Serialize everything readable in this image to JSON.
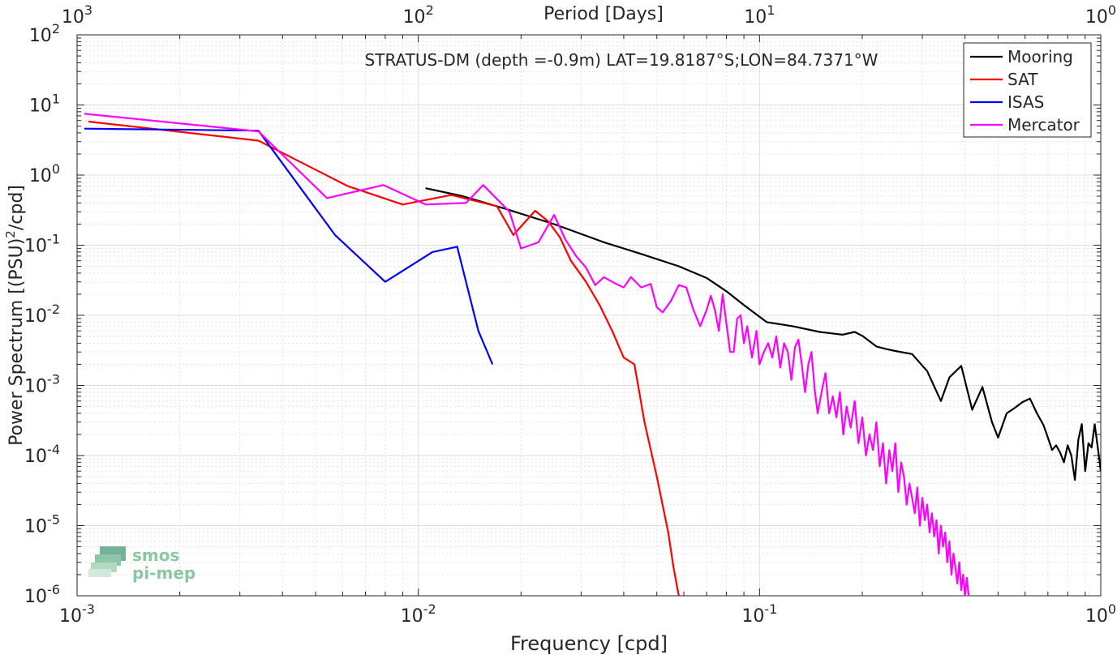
{
  "chart_data": {
    "type": "line",
    "title": "STRATUS-DM (depth =-0.9m) LAT=19.8187°S;LON=84.7371°W",
    "xlabel": "Frequency [cpd]",
    "ylabel_main": "Power Spectrum [(PSU)",
    "ylabel_sup": "2",
    "ylabel_tail": "/cpd]",
    "top_xlabel": "Period [Days]",
    "x_scale": "log",
    "y_scale": "log",
    "xlim": [
      0.001,
      1
    ],
    "ylim": [
      1e-06,
      100
    ],
    "grid": true,
    "legend_position": "top-right",
    "x_ticks": [
      {
        "value": 0.001,
        "base": "10",
        "exp": "-3"
      },
      {
        "value": 0.01,
        "base": "10",
        "exp": "-2"
      },
      {
        "value": 0.1,
        "base": "10",
        "exp": "-1"
      },
      {
        "value": 1,
        "base": "10",
        "exp": "0"
      }
    ],
    "top_ticks": [
      {
        "value": 0.001,
        "base": "10",
        "exp": "3"
      },
      {
        "value": 0.01,
        "base": "10",
        "exp": "2"
      },
      {
        "value": 0.1,
        "base": "10",
        "exp": "1"
      },
      {
        "value": 1,
        "base": "10",
        "exp": "0"
      }
    ],
    "y_ticks": [
      {
        "value": 100,
        "base": "10",
        "exp": "2"
      },
      {
        "value": 10,
        "base": "10",
        "exp": "1"
      },
      {
        "value": 1,
        "base": "10",
        "exp": "0"
      },
      {
        "value": 0.1,
        "base": "10",
        "exp": "-1"
      },
      {
        "value": 0.01,
        "base": "10",
        "exp": "-2"
      },
      {
        "value": 0.001,
        "base": "10",
        "exp": "-3"
      },
      {
        "value": 0.0001,
        "base": "10",
        "exp": "-4"
      },
      {
        "value": 1e-05,
        "base": "10",
        "exp": "-5"
      },
      {
        "value": 1e-06,
        "base": "10",
        "exp": "-6"
      }
    ],
    "series": [
      {
        "name": "Mooring",
        "color": "#000000",
        "points": [
          [
            0.0105,
            0.65
          ],
          [
            0.0135,
            0.5
          ],
          [
            0.018,
            0.33
          ],
          [
            0.025,
            0.2
          ],
          [
            0.035,
            0.11
          ],
          [
            0.045,
            0.075
          ],
          [
            0.058,
            0.05
          ],
          [
            0.07,
            0.034
          ],
          [
            0.08,
            0.022
          ],
          [
            0.09,
            0.014
          ],
          [
            0.105,
            0.008
          ],
          [
            0.125,
            0.007
          ],
          [
            0.15,
            0.0058
          ],
          [
            0.175,
            0.0053
          ],
          [
            0.19,
            0.0058
          ],
          [
            0.2,
            0.0051
          ],
          [
            0.22,
            0.0036
          ],
          [
            0.235,
            0.0033
          ],
          [
            0.25,
            0.0031
          ],
          [
            0.28,
            0.0028
          ],
          [
            0.31,
            0.0016
          ],
          [
            0.34,
            0.0006
          ],
          [
            0.36,
            0.0013
          ],
          [
            0.39,
            0.0019
          ],
          [
            0.42,
            0.00045
          ],
          [
            0.45,
            0.00095
          ],
          [
            0.48,
            0.0003
          ],
          [
            0.5,
            0.00018
          ],
          [
            0.53,
            0.0004
          ],
          [
            0.56,
            0.00048
          ],
          [
            0.59,
            0.00058
          ],
          [
            0.62,
            0.00065
          ],
          [
            0.65,
            0.0004
          ],
          [
            0.68,
            0.00027
          ],
          [
            0.7,
            0.00018
          ],
          [
            0.72,
            0.00012
          ],
          [
            0.74,
            0.00014
          ],
          [
            0.76,
            0.00011
          ],
          [
            0.78,
            8e-05
          ],
          [
            0.8,
            0.00014
          ],
          [
            0.82,
            0.0001
          ],
          [
            0.84,
            4.5e-05
          ],
          [
            0.86,
            0.00017
          ],
          [
            0.88,
            0.00028
          ],
          [
            0.9,
            6e-05
          ],
          [
            0.92,
            0.00015
          ],
          [
            0.94,
            0.00013
          ],
          [
            0.96,
            0.00028
          ],
          [
            0.98,
            0.00013
          ],
          [
            1.0,
            6e-05
          ]
        ]
      },
      {
        "name": "SAT",
        "color": "#ff0000",
        "points": [
          [
            0.00108,
            5.8
          ],
          [
            0.0034,
            3.1
          ],
          [
            0.0062,
            0.7
          ],
          [
            0.009,
            0.38
          ],
          [
            0.0125,
            0.52
          ],
          [
            0.017,
            0.36
          ],
          [
            0.019,
            0.14
          ],
          [
            0.022,
            0.31
          ],
          [
            0.024,
            0.22
          ],
          [
            0.026,
            0.13
          ],
          [
            0.028,
            0.06
          ],
          [
            0.031,
            0.03
          ],
          [
            0.034,
            0.014
          ],
          [
            0.037,
            0.006
          ],
          [
            0.04,
            0.0025
          ],
          [
            0.043,
            0.002
          ],
          [
            0.046,
            0.0003
          ],
          [
            0.05,
            5e-05
          ],
          [
            0.054,
            8e-06
          ],
          [
            0.056,
            2.5e-06
          ],
          [
            0.058,
            1e-06
          ]
        ]
      },
      {
        "name": "ISAS",
        "color": "#0000ff",
        "points": [
          [
            0.00105,
            4.6
          ],
          [
            0.0034,
            4.3
          ],
          [
            0.0057,
            0.14
          ],
          [
            0.008,
            0.03
          ],
          [
            0.011,
            0.08
          ],
          [
            0.013,
            0.095
          ],
          [
            0.015,
            0.006
          ],
          [
            0.0165,
            0.002
          ]
        ]
      },
      {
        "name": "Mercator",
        "color": "#ff00ff",
        "points": [
          [
            0.00105,
            7.5
          ],
          [
            0.0034,
            4.2
          ],
          [
            0.0054,
            0.47
          ],
          [
            0.0079,
            0.72
          ],
          [
            0.0105,
            0.38
          ],
          [
            0.0138,
            0.4
          ],
          [
            0.0155,
            0.72
          ],
          [
            0.0185,
            0.3
          ],
          [
            0.02,
            0.09
          ],
          [
            0.0225,
            0.11
          ],
          [
            0.025,
            0.27
          ],
          [
            0.027,
            0.12
          ],
          [
            0.029,
            0.07
          ],
          [
            0.031,
            0.048
          ],
          [
            0.033,
            0.027
          ],
          [
            0.035,
            0.035
          ],
          [
            0.038,
            0.028
          ],
          [
            0.04,
            0.025
          ],
          [
            0.042,
            0.035
          ],
          [
            0.045,
            0.025
          ],
          [
            0.048,
            0.028
          ],
          [
            0.05,
            0.013
          ],
          [
            0.052,
            0.011
          ],
          [
            0.055,
            0.016
          ],
          [
            0.058,
            0.027
          ],
          [
            0.061,
            0.025
          ],
          [
            0.064,
            0.012
          ],
          [
            0.067,
            0.007
          ],
          [
            0.07,
            0.012
          ],
          [
            0.072,
            0.019
          ],
          [
            0.074,
            0.012
          ],
          [
            0.076,
            0.006
          ],
          [
            0.078,
            0.02
          ],
          [
            0.08,
            0.0075
          ],
          [
            0.082,
            0.003
          ],
          [
            0.084,
            0.003
          ],
          [
            0.086,
            0.009
          ],
          [
            0.088,
            0.01
          ],
          [
            0.09,
            0.004
          ],
          [
            0.092,
            0.007
          ],
          [
            0.095,
            0.0025
          ],
          [
            0.098,
            0.006
          ],
          [
            0.1,
            0.002
          ],
          [
            0.103,
            0.003
          ],
          [
            0.106,
            0.004
          ],
          [
            0.109,
            0.0025
          ],
          [
            0.112,
            0.005
          ],
          [
            0.115,
            0.0018
          ],
          [
            0.118,
            0.004
          ],
          [
            0.121,
            0.003
          ],
          [
            0.124,
            0.0012
          ],
          [
            0.127,
            0.0035
          ],
          [
            0.13,
            0.0045
          ],
          [
            0.133,
            0.002
          ],
          [
            0.136,
            0.0008
          ],
          [
            0.139,
            0.002
          ],
          [
            0.142,
            0.003
          ],
          [
            0.145,
            0.0009
          ],
          [
            0.148,
            0.0004
          ],
          [
            0.152,
            0.0008
          ],
          [
            0.156,
            0.0015
          ],
          [
            0.16,
            0.0004
          ],
          [
            0.164,
            0.0007
          ],
          [
            0.168,
            0.00035
          ],
          [
            0.172,
            0.0008
          ],
          [
            0.176,
            0.0002
          ],
          [
            0.18,
            0.0005
          ],
          [
            0.185,
            0.00025
          ],
          [
            0.19,
            0.0006
          ],
          [
            0.195,
            0.00015
          ],
          [
            0.2,
            0.00035
          ],
          [
            0.205,
            0.0001
          ],
          [
            0.21,
            0.0002
          ],
          [
            0.215,
            0.00012
          ],
          [
            0.22,
            0.0003
          ],
          [
            0.225,
            7e-05
          ],
          [
            0.23,
            0.00015
          ],
          [
            0.235,
            4e-05
          ],
          [
            0.24,
            0.00012
          ],
          [
            0.245,
            6e-05
          ],
          [
            0.25,
            0.00015
          ],
          [
            0.255,
            3e-05
          ],
          [
            0.26,
            8e-05
          ],
          [
            0.265,
            5e-05
          ],
          [
            0.27,
            2e-05
          ],
          [
            0.275,
            4e-05
          ],
          [
            0.28,
            2.5e-05
          ],
          [
            0.285,
            1.5e-05
          ],
          [
            0.29,
            3.5e-05
          ],
          [
            0.295,
            1e-05
          ],
          [
            0.3,
            2.5e-05
          ],
          [
            0.305,
            1.2e-05
          ],
          [
            0.31,
            2e-05
          ],
          [
            0.315,
            8e-06
          ],
          [
            0.32,
            1.5e-05
          ],
          [
            0.325,
            7e-06
          ],
          [
            0.33,
            1.2e-05
          ],
          [
            0.335,
            4e-06
          ],
          [
            0.34,
            1e-05
          ],
          [
            0.345,
            5e-06
          ],
          [
            0.35,
            8e-06
          ],
          [
            0.355,
            3e-06
          ],
          [
            0.36,
            6e-06
          ],
          [
            0.365,
            2e-06
          ],
          [
            0.37,
            4e-06
          ],
          [
            0.375,
            2.5e-06
          ],
          [
            0.38,
            1.5e-06
          ],
          [
            0.385,
            3e-06
          ],
          [
            0.39,
            1.2e-06
          ],
          [
            0.395,
            2e-06
          ],
          [
            0.4,
            1e-06
          ],
          [
            0.405,
            1.8e-06
          ],
          [
            0.41,
            1e-06
          ]
        ]
      }
    ]
  },
  "watermark": {
    "line1": "smos",
    "line2": "pi-mep"
  }
}
